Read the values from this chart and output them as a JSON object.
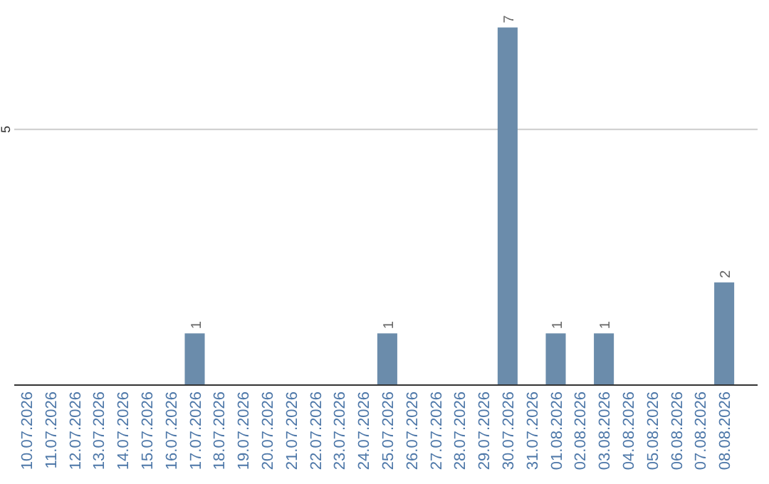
{
  "chart_data": {
    "type": "bar",
    "categories": [
      "10.07.2026",
      "11.07.2026",
      "12.07.2026",
      "13.07.2026",
      "14.07.2026",
      "15.07.2026",
      "16.07.2026",
      "17.07.2026",
      "18.07.2026",
      "19.07.2026",
      "20.07.2026",
      "21.07.2026",
      "22.07.2026",
      "23.07.2026",
      "24.07.2026",
      "25.07.2026",
      "26.07.2026",
      "27.07.2026",
      "28.07.2026",
      "29.07.2026",
      "30.07.2026",
      "31.07.2026",
      "01.08.2026",
      "02.08.2026",
      "03.08.2026",
      "04.08.2026",
      "05.08.2026",
      "06.08.2026",
      "07.08.2026",
      "08.08.2026"
    ],
    "values": [
      0,
      0,
      0,
      0,
      0,
      0,
      0,
      1,
      0,
      0,
      0,
      0,
      0,
      0,
      0,
      1,
      0,
      0,
      0,
      0,
      7,
      0,
      1,
      0,
      1,
      0,
      0,
      0,
      0,
      2
    ],
    "value_labels": [
      null,
      null,
      null,
      null,
      null,
      null,
      null,
      "1",
      null,
      null,
      null,
      null,
      null,
      null,
      null,
      "1",
      null,
      null,
      null,
      null,
      "7",
      null,
      "1",
      null,
      "1",
      null,
      null,
      null,
      null,
      "2"
    ],
    "color": "#6b8cab",
    "ref_lines": [
      {
        "axis": "y",
        "value": 5,
        "label": "5",
        "color": "#cccccc"
      }
    ]
  }
}
